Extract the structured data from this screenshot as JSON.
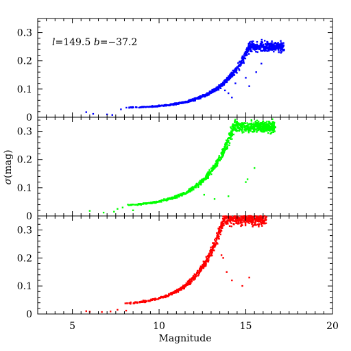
{
  "chart_data": {
    "type": "scatter",
    "annotation": {
      "l_sym": "l",
      "l_val": "=149.5 ",
      "b_sym": "b",
      "b_val": "=−37.2"
    },
    "xlabel": "Magnitude",
    "ylabel_sym": "σ",
    "ylabel_unit": "(mag)",
    "xlim": [
      3,
      20
    ],
    "ylim": [
      0,
      0.35
    ],
    "x_ticks": [
      5,
      10,
      15,
      20
    ],
    "y_ticks": [
      0,
      0.1,
      0.2,
      0.3
    ],
    "y_tick_labels": [
      "0",
      "0.1",
      "0.2",
      "0.3"
    ],
    "shared_x": true,
    "grid": false,
    "panels": [
      {
        "name": "top",
        "color": "#0000ff",
        "floor": 0.03,
        "amp": 2.4e-05,
        "k": 0.6,
        "xmax": 17.2,
        "y_at_max": 0.245,
        "sparse": [
          [
            5.8,
            0.018
          ],
          [
            6.2,
            0.012
          ],
          [
            7.0,
            0.01
          ],
          [
            7.3,
            0.008
          ],
          [
            7.8,
            0.028
          ]
        ],
        "outliers": [
          [
            13.8,
            0.095
          ],
          [
            14.0,
            0.085
          ],
          [
            14.2,
            0.07
          ],
          [
            14.4,
            0.12
          ],
          [
            15.0,
            0.14
          ],
          [
            15.2,
            0.11
          ],
          [
            15.6,
            0.16
          ],
          [
            15.9,
            0.19
          ]
        ]
      },
      {
        "name": "middle",
        "color": "#00ff00",
        "floor": 0.032,
        "amp": 4e-05,
        "k": 0.62,
        "xmax": 16.7,
        "y_at_max": 0.31,
        "sparse": [
          [
            6.0,
            0.018
          ],
          [
            6.8,
            0.012
          ],
          [
            7.4,
            0.015
          ],
          [
            7.6,
            0.025
          ],
          [
            7.9,
            0.03
          ],
          [
            8.2,
            0.04
          ],
          [
            8.5,
            0.02
          ]
        ],
        "outliers": [
          [
            12.6,
            0.075
          ],
          [
            13.2,
            0.06
          ],
          [
            14.0,
            0.07
          ],
          [
            15.0,
            0.12
          ],
          [
            15.1,
            0.13
          ],
          [
            15.5,
            0.17
          ]
        ]
      },
      {
        "name": "bottom",
        "color": "#ff0000",
        "floor": 0.03,
        "amp": 3.6e-05,
        "k": 0.66,
        "xmax": 16.2,
        "y_at_max": 0.335,
        "sparse": [
          [
            5.8,
            0.01
          ],
          [
            6.0,
            0.008
          ],
          [
            6.7,
            0.007
          ],
          [
            7.2,
            0.009
          ],
          [
            7.6,
            0.015
          ],
          [
            8.1,
            0.012
          ]
        ],
        "outliers": [
          [
            13.6,
            0.21
          ],
          [
            13.7,
            0.2
          ],
          [
            13.9,
            0.15
          ],
          [
            14.2,
            0.12
          ],
          [
            14.8,
            0.1
          ],
          [
            15.2,
            0.13
          ]
        ]
      }
    ]
  }
}
